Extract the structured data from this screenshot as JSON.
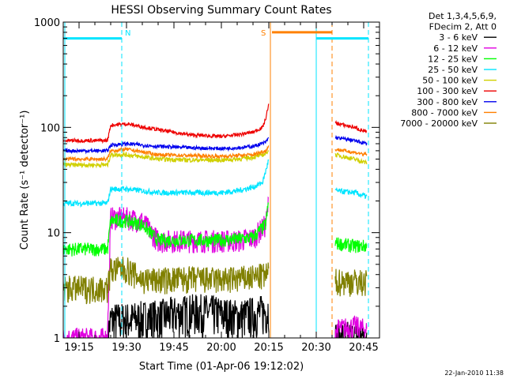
{
  "chart_data": {
    "type": "line",
    "title": "HESSI Observing Summary Count Rates",
    "xlabel": "Start Time (01-Apr-06 19:12:02)",
    "ylabel": "Count Rate (s⁻¹ detector⁻¹)",
    "y_scale": "log",
    "ylim": [
      1,
      1000
    ],
    "xlim": [
      1150,
      1250
    ],
    "x_ticks": [
      {
        "value": 1155,
        "label": "19:15"
      },
      {
        "value": 1170,
        "label": "19:30"
      },
      {
        "value": 1185,
        "label": "19:45"
      },
      {
        "value": 1200,
        "label": "20:00"
      },
      {
        "value": 1215,
        "label": "20:15"
      },
      {
        "value": 1230,
        "label": "20:30"
      },
      {
        "value": 1245,
        "label": "20:45"
      }
    ],
    "y_ticks": [
      {
        "value": 1,
        "label": "1"
      },
      {
        "value": 10,
        "label": "10"
      },
      {
        "value": 100,
        "label": "100"
      },
      {
        "value": 1000,
        "label": "1000"
      }
    ],
    "legend_header": [
      "Det 1,3,4,5,6,9,",
      "FDecim 2, Att 0"
    ],
    "legend_position": "right",
    "timestamp": "22-Jan-2010 11:38",
    "data_gaps": [
      [
        1215.5,
        1235
      ]
    ],
    "night_markers": [
      {
        "label": "N",
        "value": 1168.5,
        "color": "#00e5ff"
      },
      {
        "label": "S",
        "value": 1215.5,
        "color": "#ff8000"
      }
    ],
    "night_bars": [
      {
        "start": 1150,
        "end": 1168.5,
        "y": 700,
        "color": "#00e5ff"
      },
      {
        "start": 1216,
        "end": 1235,
        "y": 800,
        "color": "#ff8000"
      },
      {
        "start": 1230,
        "end": 1246.5,
        "y": 700,
        "color": "#00e5ff"
      }
    ],
    "vertical_lines": [
      {
        "value": 1215.5,
        "color": "#ff8000",
        "style": "solid"
      },
      {
        "value": 1230.0,
        "color": "#00e5ff",
        "style": "solid"
      },
      {
        "value": 1235.0,
        "color": "#ff8000",
        "style": "dashed"
      },
      {
        "value": 1168.5,
        "color": "#00e5ff",
        "style": "dashed"
      },
      {
        "value": 1246.5,
        "color": "#00e5ff",
        "style": "dashed"
      },
      {
        "value": 1150.5,
        "color": "#00e5ff",
        "style": "solid"
      }
    ],
    "series": [
      {
        "name": "3 - 6 keV",
        "color": "#000000",
        "x": [
          1164,
          1165,
          1170,
          1180,
          1190,
          1195,
          1200,
          1205,
          1210,
          1214,
          1215
        ],
        "y": [
          1,
          1.5,
          1.5,
          1.6,
          1.8,
          1.8,
          1.7,
          1.6,
          1.7,
          1.8,
          1.9
        ],
        "after_gap": {
          "x": [
            1236,
            1242,
            1246
          ],
          "y": [
            1,
            1,
            1
          ]
        }
      },
      {
        "name": "6 - 12 keV",
        "color": "#e000e0",
        "x": [
          1150,
          1164,
          1165,
          1170,
          1175,
          1180,
          1190,
          1200,
          1205,
          1210,
          1214,
          1215
        ],
        "y": [
          1,
          1,
          14,
          14,
          13,
          8.5,
          8.5,
          8.5,
          8.5,
          9,
          12,
          20
        ],
        "after_gap": {
          "x": [
            1236,
            1242,
            1246
          ],
          "y": [
            1.2,
            1.3,
            1.2
          ]
        }
      },
      {
        "name": "12 - 25 keV",
        "color": "#00ff00",
        "x": [
          1150,
          1164,
          1165,
          1170,
          1175,
          1180,
          1190,
          1200,
          1205,
          1210,
          1214,
          1215
        ],
        "y": [
          7,
          7,
          13,
          13,
          12,
          8.5,
          8.5,
          8.5,
          8.7,
          9,
          12,
          20
        ],
        "after_gap": {
          "x": [
            1236,
            1242,
            1246
          ],
          "y": [
            8,
            7.5,
            7.5
          ]
        }
      },
      {
        "name": "25 - 50 keV",
        "color": "#00e5ff",
        "x": [
          1150,
          1164,
          1165,
          1170,
          1180,
          1190,
          1200,
          1205,
          1210,
          1213,
          1214,
          1215
        ],
        "y": [
          19,
          19,
          26,
          26,
          24,
          24,
          24,
          25,
          27,
          30,
          38,
          50
        ],
        "after_gap": {
          "x": [
            1236,
            1242,
            1246
          ],
          "y": [
            25,
            24,
            22
          ]
        }
      },
      {
        "name": "50 - 100 keV",
        "color": "#d0d000",
        "x": [
          1150,
          1164,
          1165,
          1170,
          1180,
          1190,
          1200,
          1205,
          1210,
          1214,
          1215
        ],
        "y": [
          44,
          44,
          55,
          55,
          50,
          49,
          49,
          50,
          52,
          56,
          62
        ],
        "after_gap": {
          "x": [
            1236,
            1242,
            1246
          ],
          "y": [
            55,
            50,
            46
          ]
        }
      },
      {
        "name": "100 - 300 keV",
        "color": "#ee0000",
        "x": [
          1150,
          1164,
          1165,
          1170,
          1180,
          1190,
          1200,
          1205,
          1210,
          1213,
          1214,
          1215
        ],
        "y": [
          75,
          75,
          105,
          108,
          95,
          85,
          82,
          85,
          90,
          100,
          120,
          170
        ],
        "after_gap": {
          "x": [
            1236,
            1242,
            1246
          ],
          "y": [
            110,
            100,
            90
          ]
        }
      },
      {
        "name": "300 - 800 keV",
        "color": "#0000ee",
        "x": [
          1150,
          1164,
          1165,
          1170,
          1180,
          1190,
          1200,
          1205,
          1210,
          1214,
          1215
        ],
        "y": [
          60,
          60,
          68,
          70,
          66,
          64,
          63,
          64,
          66,
          72,
          80
        ],
        "after_gap": {
          "x": [
            1236,
            1242,
            1246
          ],
          "y": [
            80,
            75,
            70
          ]
        }
      },
      {
        "name": "800 - 7000 keV",
        "color": "#ff8000",
        "x": [
          1150,
          1164,
          1165,
          1170,
          1180,
          1190,
          1200,
          1205,
          1210,
          1214,
          1215
        ],
        "y": [
          50,
          50,
          60,
          62,
          55,
          54,
          53,
          54,
          55,
          60,
          66
        ],
        "after_gap": {
          "x": [
            1236,
            1242,
            1246
          ],
          "y": [
            62,
            58,
            55
          ]
        }
      },
      {
        "name": "7000 - 20000 keV",
        "color": "#808000",
        "x": [
          1150,
          1164,
          1165,
          1170,
          1175,
          1180,
          1190,
          1200,
          1205,
          1210,
          1214,
          1215
        ],
        "y": [
          3,
          3,
          4.5,
          4.6,
          3.6,
          3.6,
          3.7,
          3.6,
          3.7,
          3.8,
          4,
          4.2
        ],
        "after_gap": {
          "x": [
            1236,
            1242,
            1246
          ],
          "y": [
            3.5,
            3.5,
            3.4
          ]
        }
      }
    ]
  }
}
